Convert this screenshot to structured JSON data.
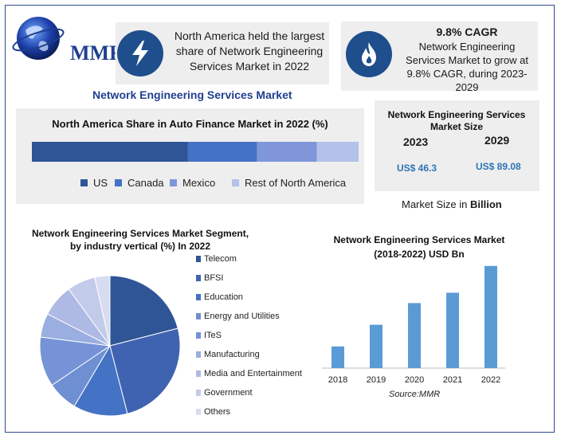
{
  "logo": {
    "text": "MMR"
  },
  "highlight_card": {
    "text": "North America held the largest share of Network Engineering Services Market in 2022",
    "icon": "lightning-icon"
  },
  "cagr_card": {
    "title": "9.8% CAGR",
    "text": "Network Engineering Services Market to grow at 9.8% CAGR, during 2023-2029",
    "icon": "flame-icon"
  },
  "main_title": "Network Engineering Services Market",
  "market_size": {
    "title": "Network Engineering Services Market Size",
    "year1": "2023",
    "value1": "US$ 46.3",
    "year2": "2029",
    "value2": "US$ 89.08",
    "footnote_prefix": "Market Size in ",
    "footnote_bold": "Billion"
  },
  "colors": {
    "navy": "#1f4e8c",
    "title_blue": "#1f3f8f",
    "bar_blue": "#5b9bd5"
  },
  "chart_data": [
    {
      "type": "bar",
      "orientation": "horizontal-stacked",
      "title": "North America Share in Auto Finance Market in 2022 (%)",
      "series": [
        {
          "name": "US",
          "value": 43,
          "color": "#2f5597"
        },
        {
          "name": "Canada",
          "value": 19,
          "color": "#4472c4"
        },
        {
          "name": "Mexico",
          "value": 16.5,
          "color": "#7f96d9"
        },
        {
          "name": "Rest of North America",
          "value": 11.5,
          "color": "#b4c1e8"
        }
      ],
      "xlim": [
        0,
        90
      ]
    },
    {
      "type": "pie",
      "title_line1": "Network Engineering Services Market Segment,",
      "title_line2": "by industry vertical (%) In 2022",
      "labels": [
        "Telecom",
        "BFSI",
        "Education",
        "Energy and Utilities",
        "ITeS",
        "Manufacturing",
        "Media and Entertainment",
        "Government",
        "Others"
      ],
      "values": [
        21,
        25,
        12.5,
        7,
        11.5,
        5.5,
        7.5,
        6.5,
        3.5
      ],
      "colors": [
        "#2f5597",
        "#3f63b0",
        "#4472c4",
        "#6f8fd3",
        "#7593d6",
        "#9aaee0",
        "#aeb9e4",
        "#c3cbea",
        "#d7dcf0"
      ]
    },
    {
      "type": "bar",
      "title_line1": "Network Engineering Services Market",
      "title_line2": "(2018-2022) USD Bn",
      "categories": [
        "2018",
        "2019",
        "2020",
        "2021",
        "2022"
      ],
      "values": [
        21,
        42,
        63,
        73,
        99
      ],
      "ylim": [
        0,
        105
      ],
      "color": "#5b9bd5",
      "source": "Source:MMR"
    }
  ]
}
